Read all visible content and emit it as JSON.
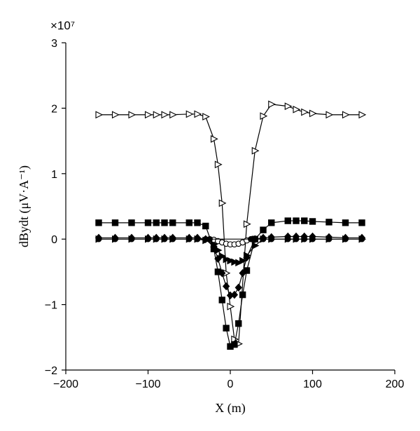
{
  "chart_data": {
    "type": "line",
    "xlabel": "X (m)",
    "ylabel": "dBydt (μV·A⁻¹)",
    "y_multiplier": "×10⁷",
    "xlim": [
      -200,
      200
    ],
    "ylim": [
      -2,
      3
    ],
    "x_ticks": [
      "−200",
      "−100",
      "0",
      "100",
      "200"
    ],
    "y_ticks": [
      "−2",
      "−1",
      "0",
      "1",
      "2",
      "3"
    ],
    "grid": false,
    "series": [
      {
        "marker": "triangle-right-open",
        "x": [
          -160,
          -140,
          -120,
          -100,
          -90,
          -80,
          -70,
          -50,
          -40,
          -30,
          -20,
          -15,
          -10,
          -5,
          0,
          5,
          10,
          20,
          30,
          40,
          50,
          70,
          80,
          90,
          100,
          120,
          140,
          160
        ],
        "y": [
          1.9,
          1.9,
          1.9,
          1.9,
          1.9,
          1.9,
          1.9,
          1.91,
          1.91,
          1.87,
          1.53,
          1.14,
          0.55,
          -0.52,
          -1.03,
          -1.53,
          -1.6,
          0.23,
          1.35,
          1.88,
          2.06,
          2.03,
          1.98,
          1.94,
          1.92,
          1.9,
          1.9,
          1.9
        ]
      },
      {
        "marker": "square-filled",
        "x": [
          -160,
          -140,
          -120,
          -100,
          -90,
          -80,
          -70,
          -50,
          -40,
          -30,
          -20,
          -15,
          -10,
          -5,
          0,
          5,
          10,
          15,
          20,
          30,
          40,
          50,
          70,
          80,
          90,
          100,
          120,
          140,
          160
        ],
        "y": [
          0.25,
          0.25,
          0.25,
          0.25,
          0.25,
          0.25,
          0.25,
          0.25,
          0.25,
          0.2,
          -0.15,
          -0.5,
          -0.93,
          -1.36,
          -1.64,
          -1.61,
          -1.29,
          -0.85,
          -0.48,
          0.0,
          0.14,
          0.25,
          0.28,
          0.28,
          0.28,
          0.27,
          0.26,
          0.25,
          0.25
        ]
      },
      {
        "marker": "diamond-filled",
        "x": [
          -160,
          -140,
          -120,
          -100,
          -90,
          -80,
          -70,
          -50,
          -40,
          -30,
          -20,
          -15,
          -10,
          -5,
          0,
          5,
          10,
          15,
          20,
          30,
          40,
          50,
          70,
          80,
          90,
          100,
          120,
          140,
          160
        ],
        "y": [
          0.02,
          0.02,
          0.02,
          0.02,
          0.02,
          0.02,
          0.02,
          0.02,
          0.02,
          0.0,
          -0.12,
          -0.3,
          -0.52,
          -0.72,
          -0.86,
          -0.85,
          -0.74,
          -0.52,
          -0.28,
          0.0,
          0.02,
          0.03,
          0.04,
          0.04,
          0.04,
          0.04,
          0.03,
          0.02,
          0.02
        ]
      },
      {
        "marker": "triangle-right-filled",
        "x": [
          -160,
          -140,
          -120,
          -100,
          -90,
          -80,
          -70,
          -50,
          -40,
          -30,
          -20,
          -15,
          -10,
          -5,
          0,
          5,
          10,
          15,
          20,
          30,
          40,
          50,
          70,
          80,
          90,
          100,
          120,
          140,
          160
        ],
        "y": [
          0.0,
          0.0,
          0.0,
          0.0,
          0.0,
          0.0,
          0.0,
          0.0,
          0.0,
          -0.02,
          -0.08,
          -0.17,
          -0.26,
          -0.31,
          -0.33,
          -0.35,
          -0.36,
          -0.33,
          -0.25,
          -0.1,
          0.0,
          0.0,
          0.0,
          0.0,
          0.0,
          0.0,
          0.0,
          0.0,
          0.0
        ]
      },
      {
        "marker": "circle-open",
        "x": [
          -20,
          -15,
          -10,
          -5,
          0,
          5,
          10,
          15,
          20
        ],
        "y": [
          -0.01,
          -0.03,
          -0.05,
          -0.07,
          -0.08,
          -0.08,
          -0.07,
          -0.05,
          -0.02
        ]
      },
      {
        "marker": "circle-filled",
        "x": [
          -160,
          -140,
          -120,
          -100,
          -90,
          -80,
          -70,
          -50,
          -40,
          -30,
          -25,
          25,
          30,
          40,
          50,
          70,
          80,
          90,
          100,
          120,
          140,
          160
        ],
        "y": [
          0,
          0,
          0,
          0,
          0,
          0,
          0,
          0,
          0,
          0,
          0,
          0,
          0,
          0,
          0,
          0,
          0,
          0,
          0,
          0,
          0,
          0
        ]
      }
    ]
  }
}
